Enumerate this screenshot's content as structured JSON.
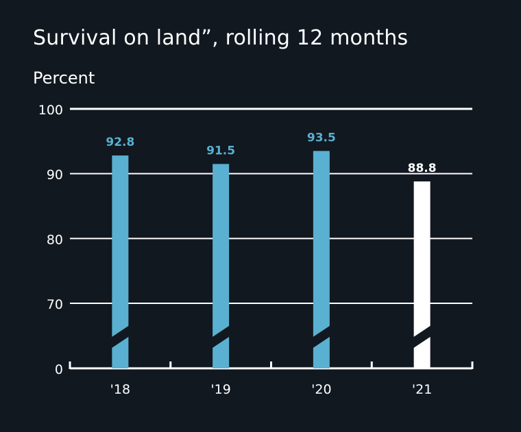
{
  "chart_data": {
    "type": "bar",
    "title": "Survival on land”, rolling 12 months",
    "ylabel": "Percent",
    "xlabel": "",
    "categories": [
      "'18",
      "'19",
      "'20",
      "'21"
    ],
    "values": [
      92.8,
      91.5,
      93.5,
      88.8
    ],
    "value_labels": [
      "92.8",
      "91.5",
      "93.5",
      "88.8"
    ],
    "y_ticks": [
      100,
      90,
      80,
      70,
      0
    ],
    "ylim": [
      0,
      100
    ],
    "axis_break": true,
    "grid": true,
    "legend": "none",
    "colors": {
      "background": "#111820",
      "historic_bar": "#5ab0d0",
      "current_bar": "#ffffff",
      "grid": "#ffffff",
      "text": "#ffffff"
    }
  }
}
